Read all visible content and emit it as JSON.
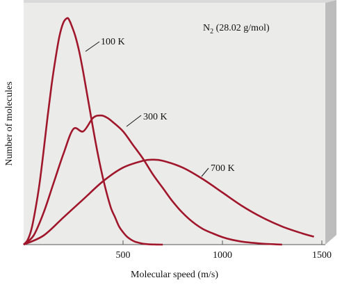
{
  "chart_data": {
    "type": "line",
    "title": "N2 (28.02 g/mol)",
    "title_parts": {
      "main": "N",
      "subscript": "2",
      "rest": " (28.02 g/mol)"
    },
    "xlabel": "Molecular speed (m/s)",
    "ylabel": "Number of molecules",
    "xlim": [
      0,
      1500
    ],
    "ylim": [
      0,
      1.0
    ],
    "grid": false,
    "legend": "inline labels",
    "x_ticks": [
      {
        "value": 500,
        "label": "500"
      },
      {
        "value": 1000,
        "label": "1000"
      },
      {
        "value": 1500,
        "label": "1500"
      }
    ],
    "series": [
      {
        "name": "100 K",
        "color": "#a0162b",
        "x": [
          0,
          20,
          40,
          60,
          80,
          100,
          120,
          140,
          160,
          180,
          200,
          220,
          230,
          240,
          260,
          280,
          300,
          320,
          340,
          360,
          380,
          400,
          420,
          440,
          460,
          480,
          500,
          520,
          540,
          560,
          580,
          600,
          620,
          640,
          660,
          680,
          700
        ],
        "y": [
          0,
          0.02,
          0.07,
          0.16,
          0.27,
          0.41,
          0.56,
          0.7,
          0.82,
          0.92,
          0.98,
          1.0,
          0.99,
          0.97,
          0.92,
          0.85,
          0.76,
          0.66,
          0.56,
          0.46,
          0.37,
          0.29,
          0.22,
          0.16,
          0.12,
          0.08,
          0.055,
          0.035,
          0.022,
          0.013,
          0.008,
          0.004,
          0.002,
          0.001,
          0.0005,
          0.0002,
          0
        ]
      },
      {
        "name": "300 K",
        "color": "#a0162b",
        "x": [
          0,
          50,
          100,
          150,
          200,
          250,
          300,
          350,
          390,
          420,
          450,
          500,
          550,
          600,
          650,
          700,
          750,
          800,
          850,
          900,
          950,
          1000,
          1050,
          1100,
          1150,
          1200,
          1250,
          1300
        ],
        "y": [
          0,
          0.04,
          0.14,
          0.27,
          0.4,
          0.51,
          0.5,
          0.56,
          0.57,
          0.56,
          0.54,
          0.5,
          0.44,
          0.38,
          0.31,
          0.25,
          0.19,
          0.14,
          0.1,
          0.07,
          0.05,
          0.033,
          0.021,
          0.013,
          0.008,
          0.004,
          0.002,
          0
        ]
      },
      {
        "name": "700 K",
        "color": "#a0162b",
        "x": [
          0,
          100,
          200,
          300,
          400,
          500,
          600,
          650,
          700,
          800,
          900,
          1000,
          1100,
          1200,
          1300,
          1400,
          1460
        ],
        "y": [
          0,
          0.04,
          0.12,
          0.2,
          0.28,
          0.34,
          0.37,
          0.375,
          0.37,
          0.34,
          0.29,
          0.23,
          0.17,
          0.12,
          0.08,
          0.05,
          0.035
        ]
      }
    ]
  }
}
